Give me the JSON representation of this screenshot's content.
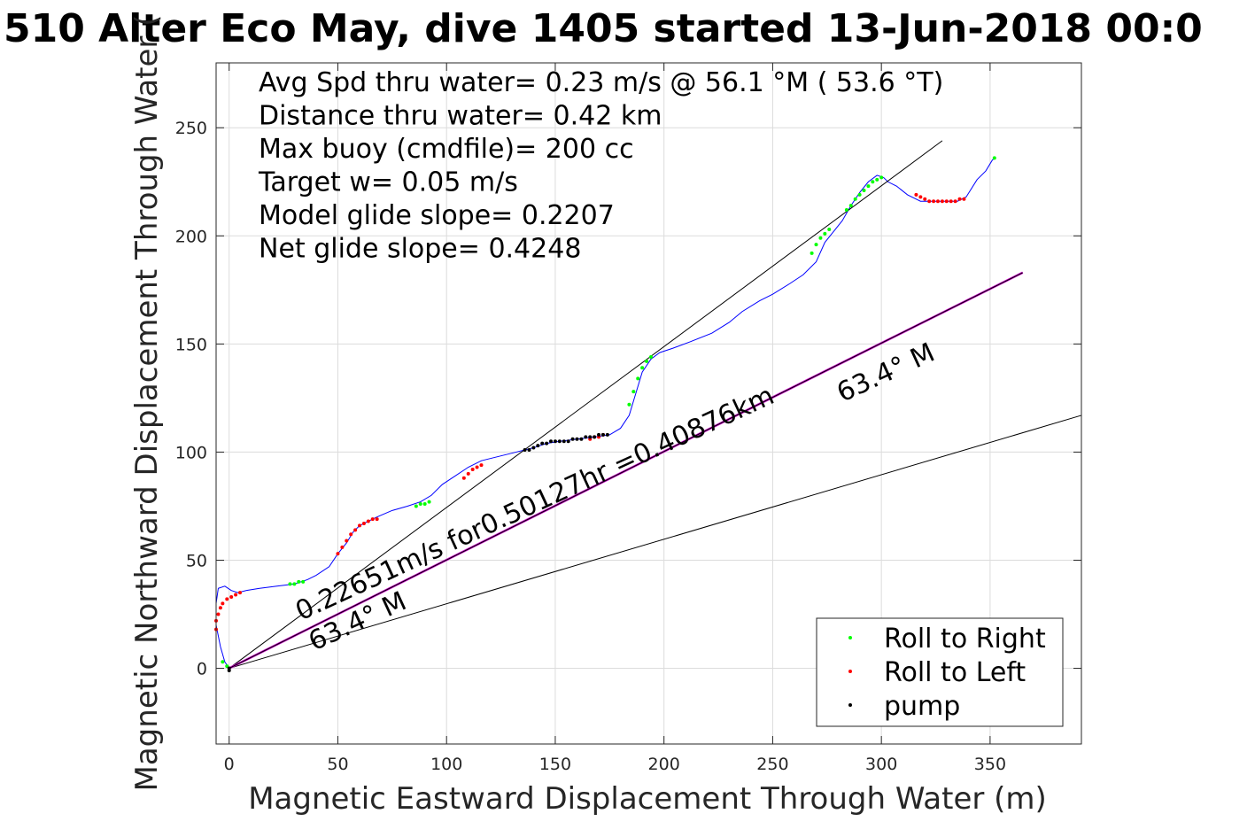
{
  "chart_data": {
    "type": "line",
    "title": "510 Alter Eco May, dive 1405 started 13-Jun-2018 00:0",
    "xlabel": "Magnetic Eastward Displacement Through Water (m)",
    "ylabel": "Magnetic Northward Displacement Through Water (",
    "xlim": [
      -6,
      392
    ],
    "ylim": [
      -35,
      280
    ],
    "xticks": [
      0,
      50,
      100,
      150,
      200,
      250,
      300,
      350
    ],
    "yticks": [
      0,
      50,
      100,
      150,
      200,
      250
    ],
    "grid": true,
    "info_lines": [
      "Avg Spd thru water=  0.23 m/s @  56.1 °M ( 53.6 °T)",
      "Distance thru water=  0.42 km",
      "Max buoy (cmdfile)= 200 cc",
      "Target w= 0.05 m/s",
      "Model glide slope= 0.2207",
      "Net glide slope= 0.4248"
    ],
    "annotations": [
      {
        "text": "0.22651m/s for0.50127hr =0.40876km",
        "x": 33,
        "y": 22,
        "angle_deg": 63.4
      },
      {
        "text": "63.4° M",
        "x": 39,
        "y": 8,
        "angle_deg": 63.4
      },
      {
        "text": "63.4° M",
        "x": 282,
        "y": 123,
        "angle_deg": 63.4
      }
    ],
    "legend": {
      "location": "bottom-right",
      "entries": [
        {
          "label": "Roll to Right",
          "color": "#00ff00"
        },
        {
          "label": "Roll to Left",
          "color": "#ff0000"
        },
        {
          "label": "pump",
          "color": "#000000"
        }
      ]
    },
    "series": [
      {
        "color": "#0000ff",
        "x": [
          0,
          -2,
          -4,
          -6,
          -6,
          -5,
          -2,
          1,
          4,
          8,
          14,
          22,
          30,
          36,
          40,
          46,
          50,
          54,
          57,
          60,
          64,
          68,
          75,
          82,
          88,
          93,
          98,
          104,
          110,
          116,
          124,
          132,
          140,
          146,
          152,
          160,
          168,
          175,
          180,
          184,
          187,
          190,
          194,
          198,
          204,
          212,
          222,
          230,
          236,
          244,
          250,
          258,
          264,
          270,
          274,
          278,
          282,
          286,
          290,
          294,
          298,
          301,
          303,
          307,
          312,
          318,
          324,
          330,
          335,
          339,
          344,
          348,
          351,
          352
        ],
        "y": [
          0,
          3,
          10,
          20,
          30,
          37,
          38,
          36,
          35,
          36,
          37,
          38,
          39,
          41,
          43,
          47,
          53,
          58,
          63,
          66,
          68,
          70,
          73,
          75,
          77,
          80,
          85,
          89,
          93,
          96,
          98,
          100,
          102,
          104,
          105,
          106,
          107,
          108,
          111,
          117,
          127,
          137,
          143,
          146,
          148,
          151,
          155,
          160,
          165,
          170,
          173,
          178,
          182,
          188,
          197,
          202,
          207,
          214,
          220,
          225,
          228,
          227,
          225,
          223,
          219,
          216,
          216,
          216,
          216,
          218,
          226,
          230,
          235,
          236
        ]
      },
      {
        "color": "#000000",
        "x": [
          0,
          328
        ],
        "y": [
          0,
          244
        ]
      },
      {
        "color": "#000000",
        "x": [
          0,
          392
        ],
        "y": [
          0,
          117
        ]
      },
      {
        "color": "#cc00cc",
        "x": [
          0,
          365
        ],
        "y": [
          0,
          183
        ]
      },
      {
        "color": "#000000",
        "x": [
          0,
          365
        ],
        "y": [
          0,
          183
        ]
      },
      {
        "name": "Roll to Right",
        "color": "#00ff00",
        "x": [
          -1,
          -3,
          28,
          30,
          32,
          34,
          86,
          88,
          90,
          92,
          184,
          186,
          188,
          190,
          192,
          194,
          268,
          270,
          272,
          274,
          276,
          284,
          286,
          288,
          290,
          292,
          294,
          296,
          298,
          300,
          352
        ],
        "y": [
          1,
          3,
          39,
          39,
          40,
          40,
          75,
          76,
          76,
          77,
          122,
          128,
          134,
          139,
          142,
          144,
          192,
          196,
          199,
          201,
          203,
          212,
          214,
          217,
          219,
          221,
          223,
          225,
          226,
          227,
          236
        ]
      },
      {
        "name": "Roll to Left",
        "color": "#ff0000",
        "x": [
          -6,
          -6,
          -5,
          -4,
          -3,
          -1,
          1,
          3,
          5,
          50,
          52,
          54,
          56,
          58,
          60,
          62,
          64,
          66,
          68,
          108,
          110,
          112,
          114,
          116,
          166,
          168,
          170,
          172,
          316,
          318,
          320,
          322,
          324,
          326,
          328,
          330,
          332,
          334,
          336,
          338
        ],
        "y": [
          18,
          22,
          25,
          28,
          30,
          32,
          33,
          34,
          35,
          53,
          56,
          59,
          62,
          64,
          66,
          67,
          68,
          69,
          69,
          88,
          90,
          92,
          93,
          94,
          106,
          107,
          107,
          108,
          219,
          218,
          217,
          216,
          216,
          216,
          216,
          216,
          216,
          216,
          217,
          217
        ]
      },
      {
        "name": "pump",
        "color": "#000000",
        "x": [
          0,
          0,
          136,
          138,
          140,
          142,
          144,
          146,
          148,
          150,
          152,
          154,
          156,
          158,
          160,
          162,
          164,
          166,
          168,
          170,
          172,
          174
        ],
        "y": [
          0,
          -1,
          101,
          101,
          102,
          103,
          104,
          104,
          105,
          105,
          105,
          105,
          105,
          106,
          106,
          106,
          107,
          107,
          107,
          108,
          108,
          108
        ]
      }
    ]
  }
}
